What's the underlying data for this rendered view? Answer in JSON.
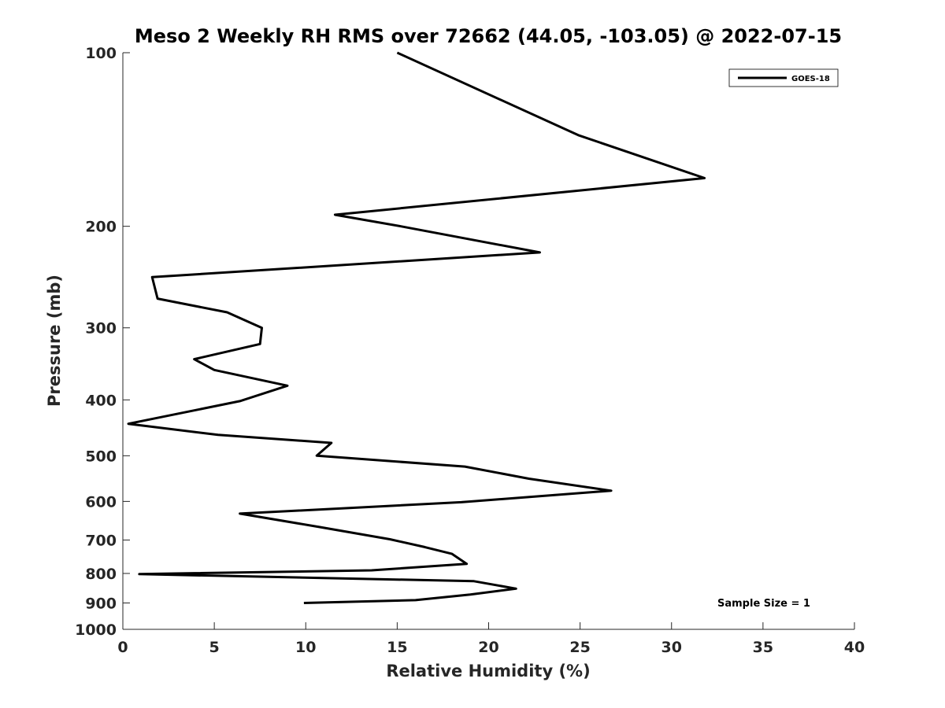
{
  "chart_data": {
    "type": "line",
    "title": "Meso 2 Weekly RH RMS over 72662 (44.05, -103.05) @ 2022-07-15",
    "xlabel": "Relative Humidity (%)",
    "ylabel": "Pressure (mb)",
    "xlim": [
      0,
      40
    ],
    "ylim": [
      100,
      1000
    ],
    "yscale": "log",
    "y_reversed": true,
    "grid": false,
    "xticks": [
      0,
      5,
      10,
      15,
      20,
      25,
      30,
      35,
      40
    ],
    "xtick_labels": [
      "0",
      "5",
      "10",
      "15",
      "20",
      "25",
      "30",
      "35",
      "40"
    ],
    "yticks": [
      100,
      200,
      300,
      400,
      500,
      600,
      700,
      800,
      900,
      1000
    ],
    "ytick_labels": [
      "100",
      "200",
      "300",
      "400",
      "500",
      "600",
      "700",
      "800",
      "900",
      "1000"
    ],
    "legend_position": "top-right",
    "series": [
      {
        "name": "GOES-18",
        "color": "#000000",
        "x": [
          15.0,
          24.9,
          31.8,
          11.6,
          15.2,
          22.8,
          1.6,
          1.9,
          5.7,
          7.6,
          7.5,
          3.9,
          5.0,
          9.0,
          6.4,
          0.3,
          5.2,
          11.4,
          10.6,
          18.7,
          22.2,
          26.7,
          18.5,
          6.4,
          10.8,
          14.6,
          16.5,
          18.0,
          18.8,
          13.6,
          0.9,
          19.2,
          21.5,
          19.0,
          16.0,
          9.9
        ],
        "y": [
          100,
          139,
          165,
          191,
          200,
          222,
          245,
          267,
          282,
          300,
          320,
          340,
          355,
          378,
          402,
          440,
          460,
          475,
          500,
          522,
          548,
          575,
          602,
          630,
          665,
          698,
          720,
          740,
          770,
          790,
          802,
          825,
          850,
          870,
          890,
          900
        ]
      }
    ],
    "annotations": [
      "Sample Size = 1"
    ]
  }
}
